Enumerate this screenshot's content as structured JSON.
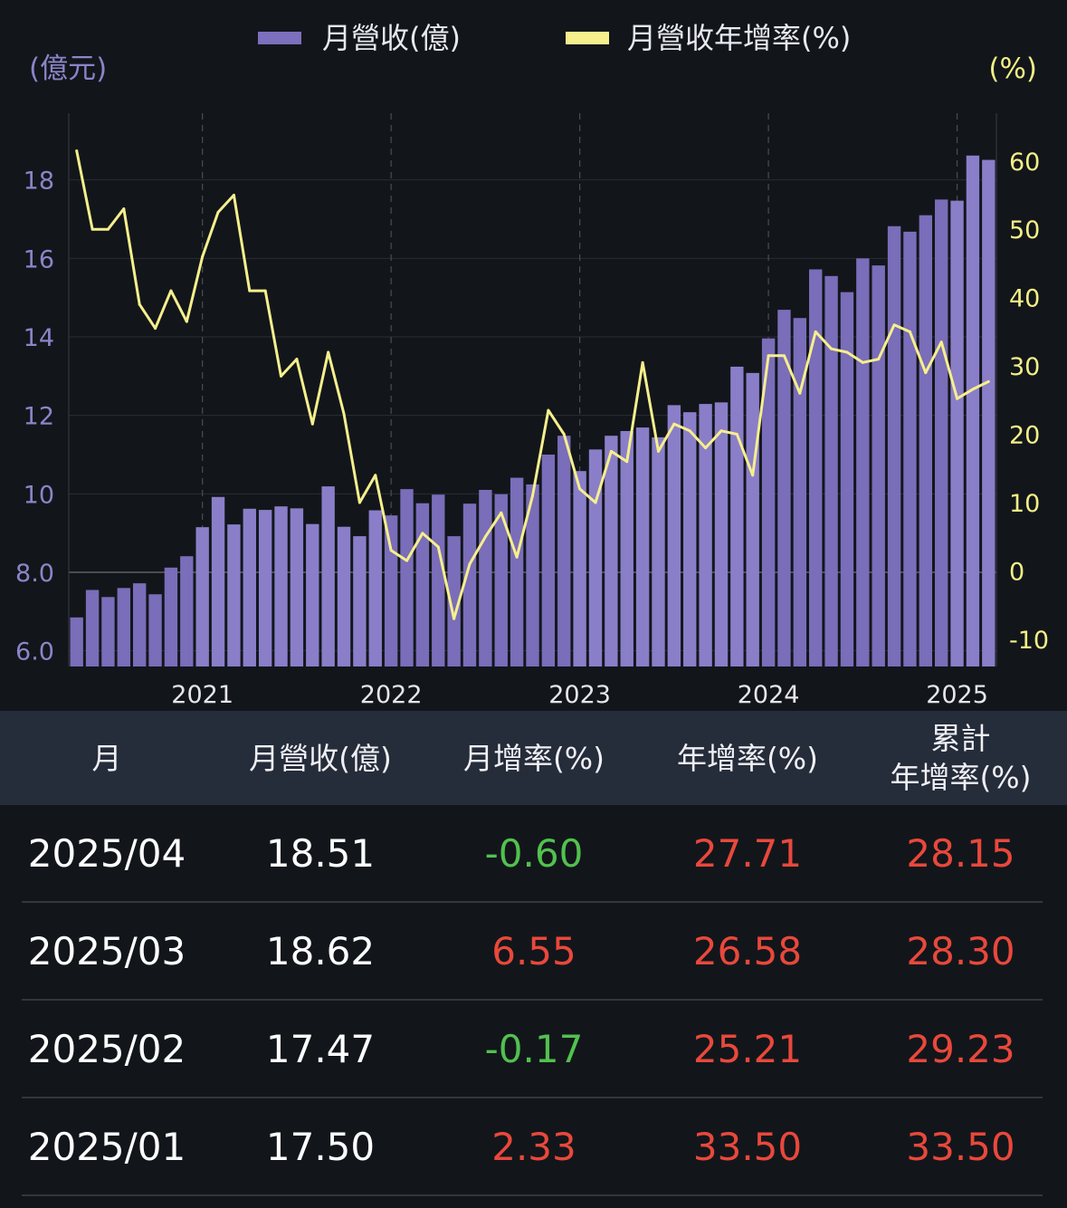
{
  "legend": {
    "revenue_label": "月營收(億)",
    "yoy_label": "月營收年增率(%)"
  },
  "colors": {
    "bar": "#7c6fbd",
    "line": "#f6ef8c",
    "positive": "#e9483b",
    "negative": "#52c14e"
  },
  "chart_data": {
    "type": "bar",
    "left_unit": "(億元)",
    "right_unit": "(%)",
    "left_axis": {
      "ticks": [
        "6.0",
        "8.0",
        "10",
        "12",
        "14",
        "16",
        "18"
      ],
      "range": [
        5.6,
        19.7
      ]
    },
    "right_axis": {
      "ticks": [
        "-10",
        "0",
        "10",
        "20",
        "30",
        "40",
        "50",
        "60"
      ],
      "range": [
        -14,
        67
      ]
    },
    "x_ticks": [
      "2021",
      "2022",
      "2023",
      "2024",
      "2025"
    ],
    "start_month": "2020-05",
    "series": [
      {
        "name": "月營收(億)",
        "type": "bar",
        "axis": "left",
        "values": [
          6.85,
          7.55,
          7.37,
          7.6,
          7.72,
          7.44,
          8.12,
          8.41,
          9.15,
          9.92,
          9.22,
          9.62,
          9.59,
          9.68,
          9.63,
          9.23,
          10.19,
          9.16,
          8.92,
          9.58,
          9.45,
          10.12,
          9.76,
          9.98,
          8.92,
          9.75,
          10.1,
          9.99,
          10.41,
          10.24,
          11.0,
          11.48,
          10.58,
          11.13,
          11.48,
          11.6,
          11.69,
          11.44,
          12.26,
          12.08,
          12.29,
          12.33,
          13.24,
          13.08,
          13.96,
          14.69,
          14.48,
          15.72,
          15.55,
          15.14,
          16.0,
          15.82,
          16.82,
          16.68,
          17.1,
          17.5,
          17.47,
          18.62,
          18.51
        ]
      },
      {
        "name": "月營收年增率(%)",
        "type": "line",
        "axis": "right",
        "values": [
          61.5,
          50.0,
          50.0,
          53.0,
          39.0,
          35.5,
          41.0,
          36.5,
          46.0,
          52.5,
          55.0,
          41.0,
          41.0,
          28.5,
          31.0,
          21.5,
          32.0,
          23.0,
          10.0,
          14.0,
          3.0,
          1.5,
          5.5,
          3.5,
          -7.0,
          1.0,
          5.0,
          8.5,
          2.0,
          11.0,
          23.5,
          20.0,
          12.0,
          10.0,
          17.5,
          16.0,
          30.5,
          17.5,
          21.5,
          20.5,
          18.0,
          20.5,
          20.0,
          14.0,
          31.5,
          31.5,
          26.0,
          35.0,
          32.5,
          32.0,
          30.5,
          31.0,
          36.0,
          35.0,
          29.0,
          33.5,
          25.21,
          26.58,
          27.71
        ]
      }
    ]
  },
  "table": {
    "headers": [
      "月",
      "月營收(億)",
      "月增率(%)",
      "年增率(%)",
      "累計\n年增率(%)"
    ],
    "rows": [
      {
        "month": "2025/04",
        "revenue": "18.51",
        "mom": "-0.60",
        "yoy": "27.71",
        "cum": "28.15"
      },
      {
        "month": "2025/03",
        "revenue": "18.62",
        "mom": "6.55",
        "yoy": "26.58",
        "cum": "28.30"
      },
      {
        "month": "2025/02",
        "revenue": "17.47",
        "mom": "-0.17",
        "yoy": "25.21",
        "cum": "29.23"
      },
      {
        "month": "2025/01",
        "revenue": "17.50",
        "mom": "2.33",
        "yoy": "33.50",
        "cum": "33.50"
      }
    ]
  }
}
